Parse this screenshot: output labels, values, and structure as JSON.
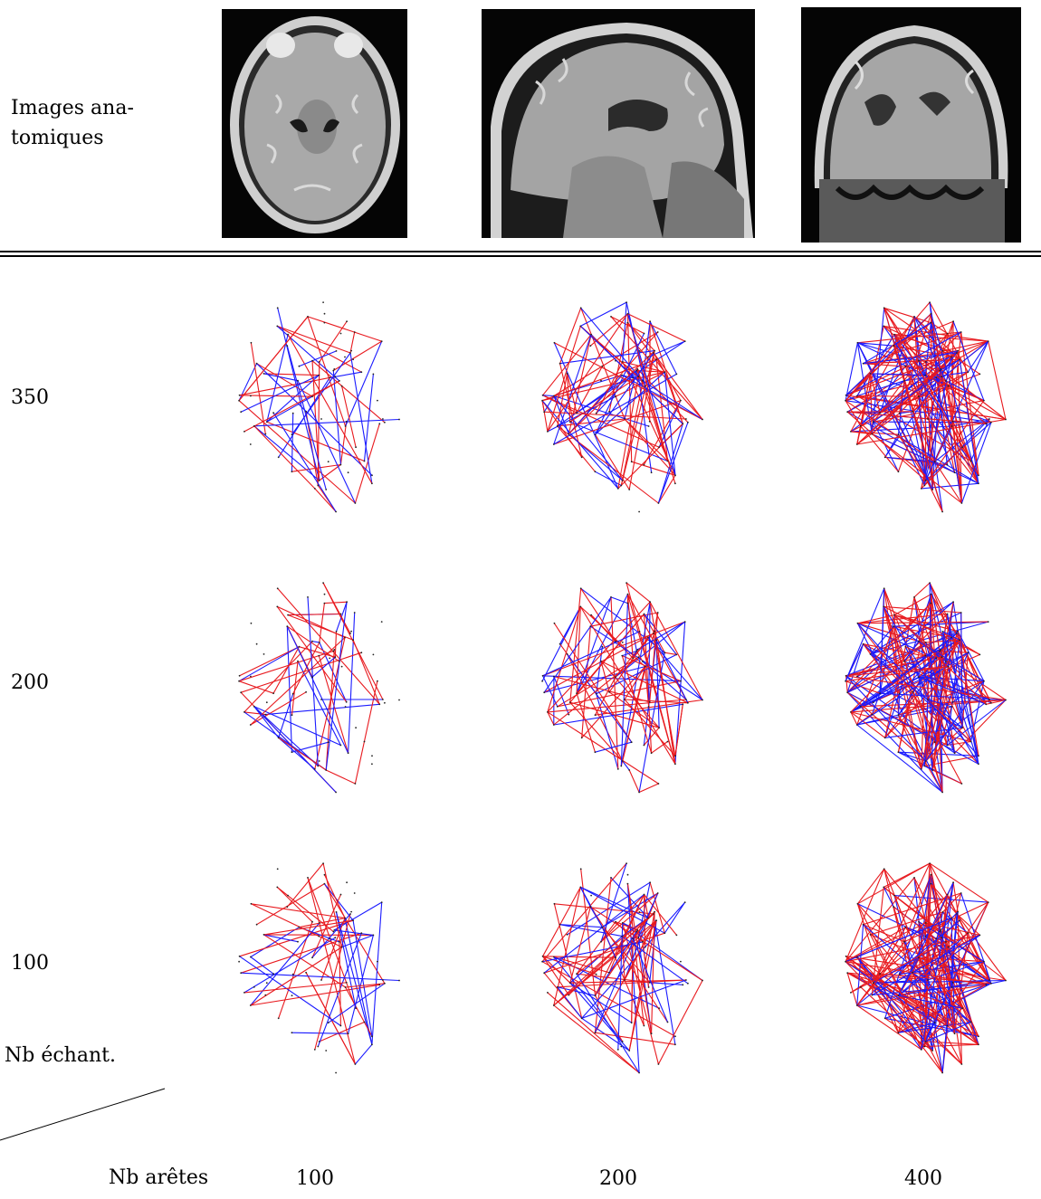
{
  "figure": {
    "top_row_label_line1": "Images ana-",
    "top_row_label_line2": "tomiques",
    "row_labels": [
      "350",
      "200",
      "100"
    ],
    "column_labels": [
      "100",
      "200",
      "400"
    ],
    "corner_row_axis": "Nb échant.",
    "corner_col_axis": "Nb arêtes"
  },
  "images": [
    {
      "name": "axial"
    },
    {
      "name": "sagittal"
    },
    {
      "name": "coronal"
    }
  ],
  "graphs": [
    {
      "row": "350",
      "col": "100",
      "edges": 100,
      "seed": 3
    },
    {
      "row": "350",
      "col": "200",
      "edges": 200,
      "seed": 5
    },
    {
      "row": "350",
      "col": "400",
      "edges": 400,
      "seed": 7
    },
    {
      "row": "200",
      "col": "100",
      "edges": 100,
      "seed": 11
    },
    {
      "row": "200",
      "col": "200",
      "edges": 200,
      "seed": 13
    },
    {
      "row": "200",
      "col": "400",
      "edges": 400,
      "seed": 17
    },
    {
      "row": "100",
      "col": "100",
      "edges": 100,
      "seed": 19
    },
    {
      "row": "100",
      "col": "200",
      "edges": 200,
      "seed": 23
    },
    {
      "row": "100",
      "col": "400",
      "edges": 400,
      "seed": 29
    }
  ],
  "colors": {
    "red": "#e8191e",
    "blue": "#1a1aff",
    "node": "#222222"
  }
}
